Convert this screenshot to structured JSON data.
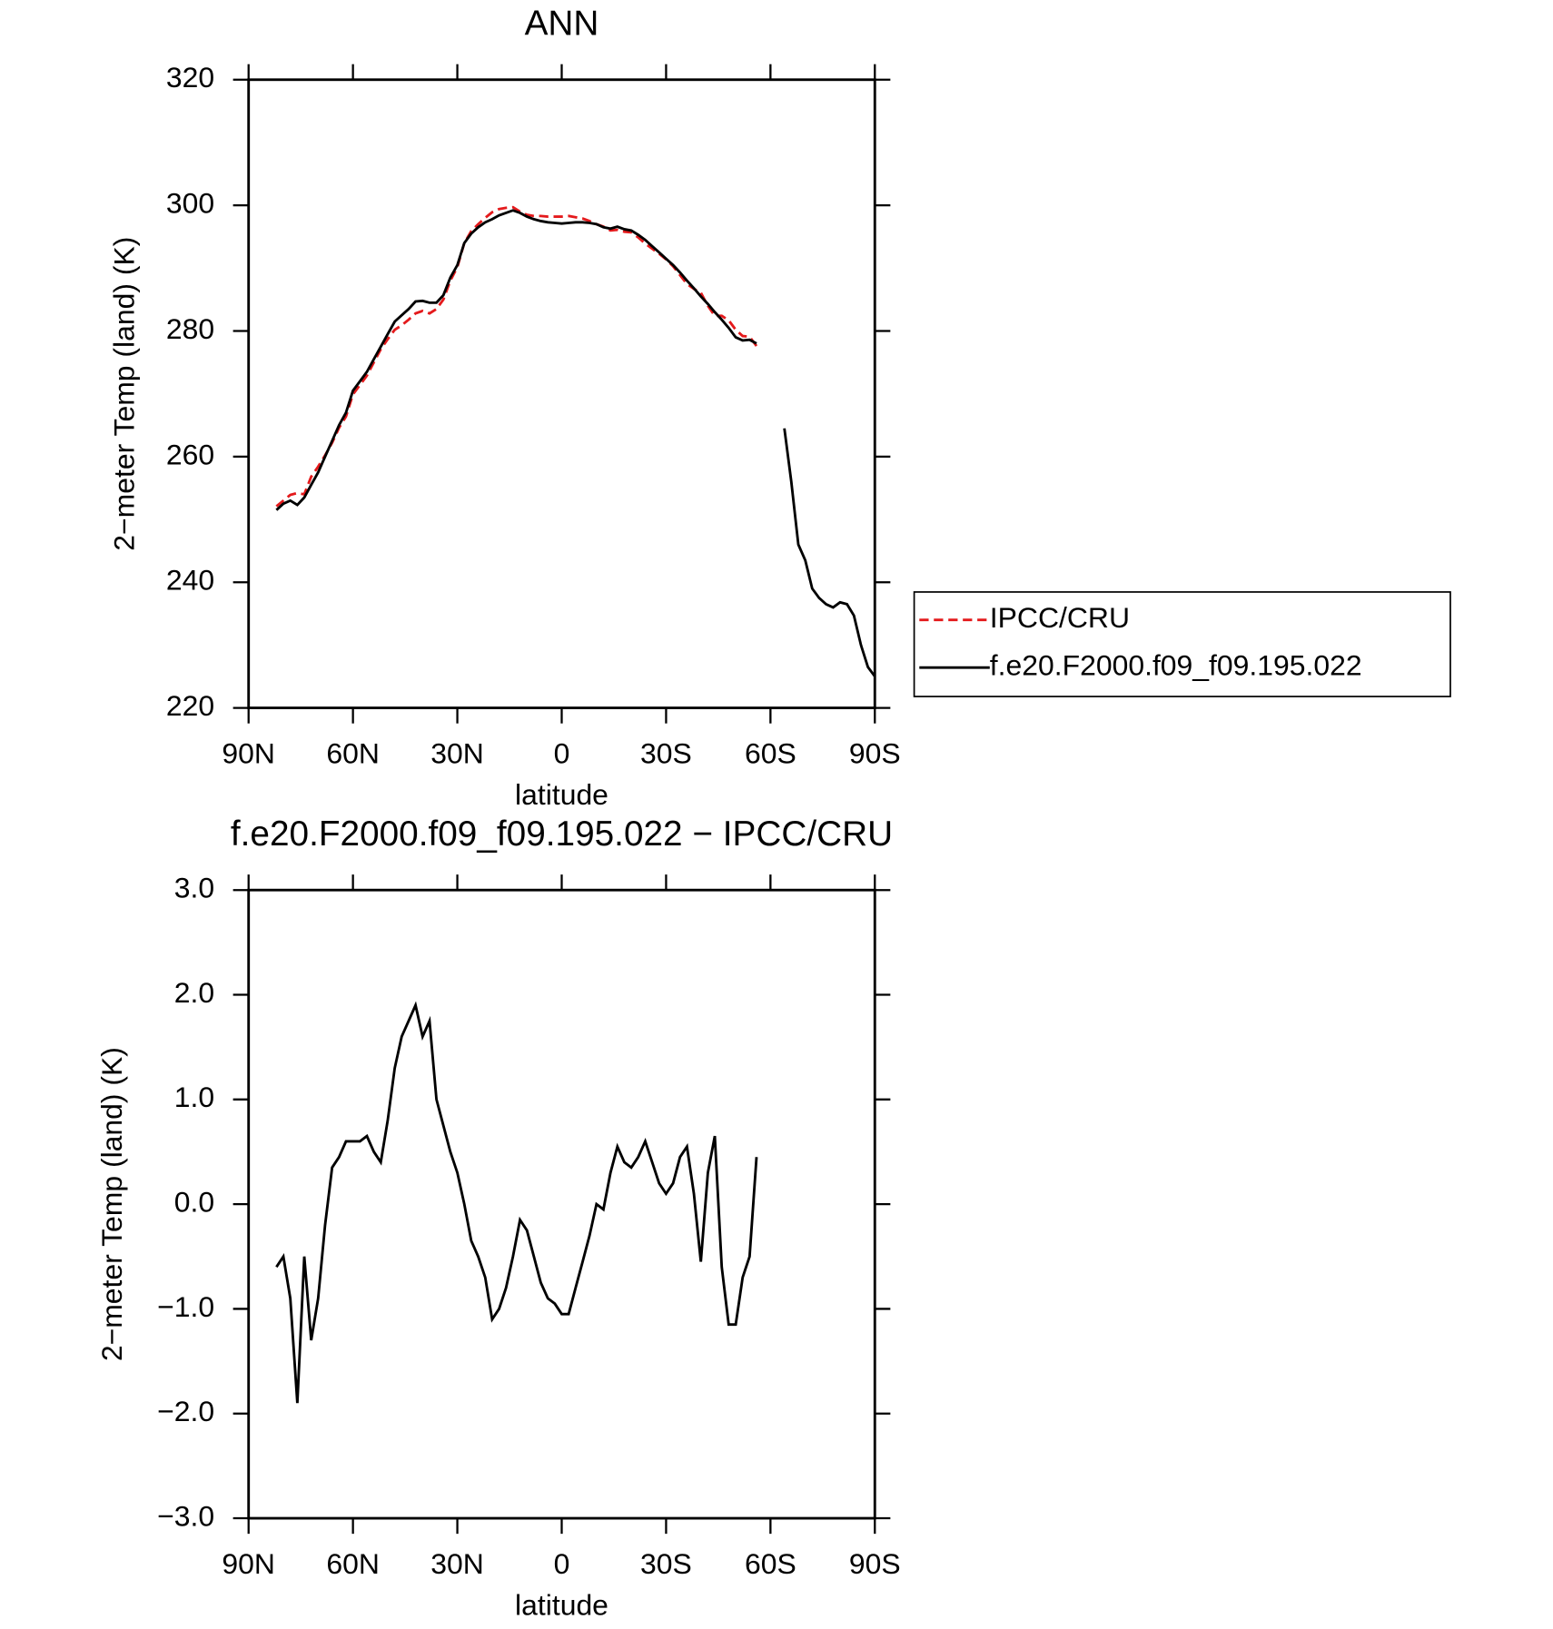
{
  "chart_data": [
    {
      "type": "line",
      "title": "ANN",
      "x_label": "latitude",
      "y_label": "2−meter Temp (land) (K)",
      "x": [
        82,
        80,
        78,
        76,
        74,
        72,
        70,
        68,
        66,
        64,
        62,
        60,
        58,
        56,
        54,
        52,
        50,
        48,
        46,
        44,
        42,
        40,
        38,
        36,
        34,
        32,
        30,
        28,
        26,
        24,
        22,
        20,
        18,
        16,
        14,
        12,
        10,
        8,
        6,
        4,
        2,
        0,
        -2,
        -4,
        -6,
        -8,
        -10,
        -12,
        -14,
        -16,
        -18,
        -20,
        -22,
        -24,
        -26,
        -28,
        -30,
        -32,
        -34,
        -36,
        -38,
        -40,
        -42,
        -44,
        -46,
        -48,
        -50,
        -52,
        -54,
        -56,
        -58,
        -60,
        -62,
        -64,
        -66,
        -68,
        -70,
        -72,
        -74,
        -76,
        -78,
        -80,
        -82,
        -84,
        -86,
        -88,
        -90
      ],
      "series": [
        {
          "name": "IPCC/CRU",
          "color": "#e41a1c",
          "dash": "dashed",
          "values": [
            252.1,
            253.0,
            253.9,
            254.2,
            254.0,
            256.8,
            258.4,
            260.2,
            262.2,
            264.6,
            266.4,
            269.9,
            271.4,
            272.9,
            275.0,
            277.1,
            278.7,
            280.2,
            280.9,
            281.8,
            282.8,
            283.2,
            282.8,
            283.5,
            285.0,
            288.0,
            290.2,
            294.0,
            295.9,
            297.0,
            298.0,
            298.9,
            299.4,
            299.6,
            299.7,
            299.0,
            298.5,
            298.3,
            298.3,
            298.2,
            298.2,
            298.2,
            298.3,
            298.1,
            297.9,
            297.5,
            297.0,
            296.6,
            296.0,
            296.1,
            295.8,
            295.7,
            294.9,
            293.9,
            293.1,
            292.3,
            291.4,
            290.3,
            288.9,
            287.5,
            286.7,
            286.1,
            284.0,
            282.4,
            282.4,
            281.7,
            280.2,
            279.2,
            279.1,
            277.6,
            null,
            null,
            null,
            null,
            null,
            null,
            null,
            null,
            null,
            null,
            null,
            null,
            null,
            null,
            null,
            null,
            null
          ]
        },
        {
          "name": "f.e20.F2000.f09_f09.195.022",
          "color": "#000000",
          "dash": "solid",
          "values": [
            251.5,
            252.5,
            253,
            252.3,
            253.5,
            255.5,
            257.5,
            260,
            262.5,
            265,
            267,
            270.5,
            272,
            273.5,
            275.5,
            277.5,
            279.5,
            281.5,
            282.5,
            283.5,
            284.7,
            284.8,
            284.5,
            284.5,
            285.7,
            288.5,
            290.5,
            294,
            295.5,
            296.5,
            297.3,
            297.8,
            298.4,
            298.8,
            299.2,
            298.8,
            298.2,
            297.8,
            297.5,
            297.3,
            297.2,
            297.1,
            297.2,
            297.3,
            297.3,
            297.2,
            297,
            296.5,
            296.3,
            296.6,
            296.2,
            296,
            295.3,
            294.5,
            293.5,
            292.5,
            291.5,
            290.5,
            289.3,
            288,
            286.8,
            285.5,
            284.3,
            283,
            281.8,
            280.5,
            279,
            278.5,
            278.6,
            278,
            null,
            null,
            null,
            264.5,
            256,
            246,
            243.5,
            239,
            237.5,
            236.5,
            236,
            236.8,
            236.5,
            234.7,
            230,
            226.5,
            225
          ]
        }
      ],
      "xlim": [
        90,
        -90
      ],
      "xticks": [
        {
          "value": 90,
          "label": "90N"
        },
        {
          "value": 60,
          "label": "60N"
        },
        {
          "value": 30,
          "label": "30N"
        },
        0,
        {
          "value": -30,
          "label": "30S"
        },
        {
          "value": -60,
          "label": "60S"
        },
        {
          "value": -90,
          "label": "90S"
        }
      ],
      "ylim": [
        220,
        320
      ],
      "yticks": [
        220,
        240,
        260,
        280,
        300,
        320
      ],
      "legend": "right"
    },
    {
      "type": "line",
      "title": "f.e20.F2000.f09_f09.195.022 − IPCC/CRU",
      "x_label": "latitude",
      "y_label": "2−meter Temp (land) (K)",
      "x": [
        82,
        80,
        78,
        76,
        74,
        72,
        70,
        68,
        66,
        64,
        62,
        60,
        58,
        56,
        54,
        52,
        50,
        48,
        46,
        44,
        42,
        40,
        38,
        36,
        34,
        32,
        30,
        28,
        26,
        24,
        22,
        20,
        18,
        16,
        14,
        12,
        10,
        8,
        6,
        4,
        2,
        0,
        -2,
        -4,
        -6,
        -8,
        -10,
        -12,
        -14,
        -16,
        -18,
        -20,
        -22,
        -24,
        -26,
        -28,
        -30,
        -32,
        -34,
        -36,
        -38,
        -40,
        -42,
        -44,
        -46,
        -48,
        -50,
        -52,
        -54,
        -56,
        -58,
        -60,
        -62,
        -64,
        -66,
        -68,
        -70,
        -72,
        -74,
        -76,
        -78,
        -80,
        -82,
        -84,
        -86,
        -88,
        -90
      ],
      "color": "#000000",
      "values": [
        -0.6,
        -0.5,
        -0.9,
        -1.9,
        -0.5,
        -1.3,
        -0.9,
        -0.2,
        0.35,
        0.45,
        0.6,
        0.6,
        0.6,
        0.65,
        0.5,
        0.4,
        0.8,
        1.3,
        1.6,
        1.75,
        1.9,
        1.6,
        1.75,
        1.0,
        0.75,
        0.5,
        0.3,
        0.0,
        -0.35,
        -0.5,
        -0.7,
        -1.1,
        -1.0,
        -0.8,
        -0.5,
        -0.15,
        -0.25,
        -0.5,
        -0.75,
        -0.9,
        -0.95,
        -1.05,
        -1.05,
        -0.8,
        -0.55,
        -0.3,
        0.0,
        -0.05,
        0.3,
        0.55,
        0.4,
        0.35,
        0.45,
        0.6,
        0.4,
        0.2,
        0.1,
        0.2,
        0.45,
        0.55,
        0.1,
        -0.55,
        0.3,
        0.65,
        -0.6,
        -1.15,
        -1.15,
        -0.7,
        -0.5,
        0.45,
        null,
        null,
        null,
        null,
        null,
        null,
        null,
        null,
        null,
        null,
        null,
        null,
        null,
        null,
        null,
        null,
        null
      ],
      "xlim": [
        90,
        -90
      ],
      "xticks": [
        {
          "value": 90,
          "label": "90N"
        },
        {
          "value": 60,
          "label": "60N"
        },
        {
          "value": 30,
          "label": "30N"
        },
        0,
        {
          "value": -30,
          "label": "30S"
        },
        {
          "value": -60,
          "label": "60S"
        },
        {
          "value": -90,
          "label": "90S"
        }
      ],
      "ylim": [
        -3,
        3
      ],
      "yticks": [
        {
          "value": -3,
          "label": "−3.0"
        },
        {
          "value": -2,
          "label": "−2.0"
        },
        {
          "value": -1,
          "label": "−1.0"
        },
        {
          "value": 0,
          "label": "0.0"
        },
        {
          "value": 1,
          "label": "1.0"
        },
        {
          "value": 2,
          "label": "2.0"
        },
        {
          "value": 3,
          "label": "3.0"
        }
      ]
    }
  ]
}
